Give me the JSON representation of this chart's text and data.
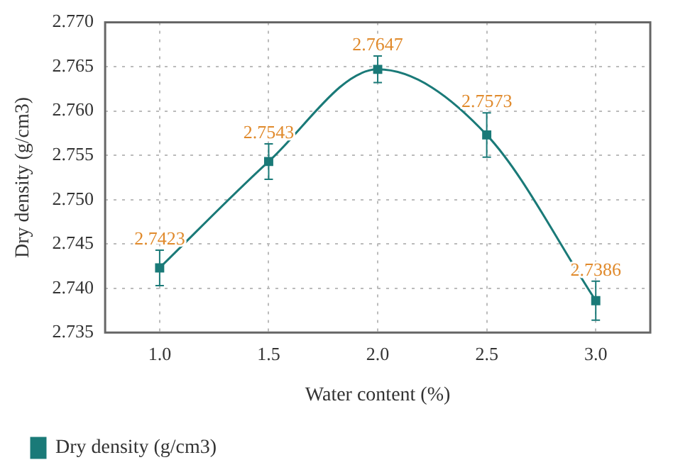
{
  "chart_data": {
    "type": "line",
    "xlabel": "Water content (%)",
    "ylabel": "Dry density (g/cm3)",
    "x": [
      1.0,
      1.5,
      2.0,
      2.5,
      3.0
    ],
    "series": [
      {
        "name": "Dry density (g/cm3)",
        "color": "#1a7a78",
        "values": [
          2.7423,
          2.7543,
          2.7647,
          2.7573,
          2.7386
        ],
        "errors": [
          0.002,
          0.002,
          0.0015,
          0.0025,
          0.0022
        ]
      }
    ],
    "xlim": [
      0.75,
      3.25
    ],
    "xticks": [
      {
        "value": 1.0,
        "label": "1.0"
      },
      {
        "value": 1.5,
        "label": "1.5"
      },
      {
        "value": 2.0,
        "label": "2.0"
      },
      {
        "value": 2.5,
        "label": "2.5"
      },
      {
        "value": 3.0,
        "label": "3.0"
      }
    ],
    "ylim": [
      2.735,
      2.77
    ],
    "yticks": [
      {
        "value": 2.735,
        "label": "2.735"
      },
      {
        "value": 2.74,
        "label": "2.740"
      },
      {
        "value": 2.745,
        "label": "2.745"
      },
      {
        "value": 2.75,
        "label": "2.750"
      },
      {
        "value": 2.755,
        "label": "2.755"
      },
      {
        "value": 2.76,
        "label": "2.760"
      },
      {
        "value": 2.765,
        "label": "2.765"
      },
      {
        "value": 2.77,
        "label": "2.770"
      }
    ],
    "grid": true,
    "legend": "bottom left",
    "marker": "square",
    "line_style": "solid",
    "data_labels": true
  }
}
